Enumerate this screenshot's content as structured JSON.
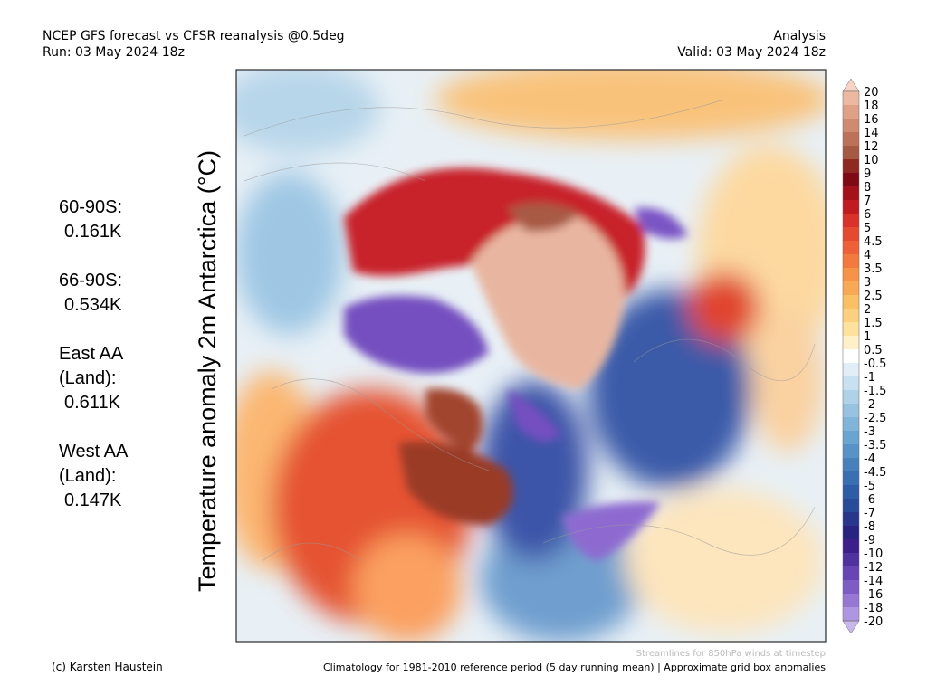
{
  "header": {
    "title": "NCEP GFS forecast vs CFSR reanalysis @0.5deg",
    "run": "Run: 03 May 2024 18z",
    "analysis": "Analysis",
    "valid": "Valid: 03 May 2024 18z"
  },
  "map_title": "Temperature anomaly 2m Antarctica (°C)",
  "stats": [
    {
      "lines": [
        "60-90S:"
      ],
      "value": "0.161K"
    },
    {
      "lines": [
        "66-90S:"
      ],
      "value": "0.534K"
    },
    {
      "lines": [
        "East AA",
        "(Land):"
      ],
      "value": "0.611K"
    },
    {
      "lines": [
        "West AA",
        "(Land):"
      ],
      "value": "0.147K"
    }
  ],
  "colorbar": {
    "labels": [
      "20",
      "18",
      "16",
      "14",
      "12",
      "10",
      "9",
      "8",
      "7",
      "6",
      "5",
      "4.5",
      "4",
      "3.5",
      "3",
      "2.5",
      "2",
      "1.5",
      "1",
      "0.5",
      "-0.5",
      "-1",
      "-1.5",
      "-2",
      "-2.5",
      "-3",
      "-3.5",
      "-4",
      "-4.5",
      "-5",
      "-6",
      "-7",
      "-8",
      "-9",
      "-10",
      "-12",
      "-14",
      "-16",
      "-18",
      "-20"
    ],
    "colors": [
      "#f7d3c3",
      "#ebb9a2",
      "#dfa088",
      "#cf8a70",
      "#bd7258",
      "#a65a44",
      "#8e2a22",
      "#7d0a14",
      "#a3121a",
      "#c01c20",
      "#d8322a",
      "#e44a30",
      "#ee6138",
      "#f37a3e",
      "#f79249",
      "#f9a955",
      "#fbbf66",
      "#fcd07e",
      "#fde19d",
      "#fef0c8",
      "#ffffff",
      "#e2eef7",
      "#c9e0f0",
      "#b0d2e9",
      "#97c3e1",
      "#80b4d9",
      "#6aa4d0",
      "#5793c6",
      "#4781bc",
      "#3a6fb1",
      "#2f5ca6",
      "#2a4a9a",
      "#29368c",
      "#2a2280",
      "#3c1f8a",
      "#5031a0",
      "#6745b4",
      "#7e5cc6",
      "#9678d4",
      "#ae96e0",
      "#c8b6ec"
    ]
  },
  "footer": {
    "streamlines": "Streamlines for 850hPa winds at timestep",
    "credit": "(c) Karsten Haustein",
    "climatology": "Climatology for 1981-2010 reference period (5 day running mean) | Approximate grid box anomalies"
  }
}
